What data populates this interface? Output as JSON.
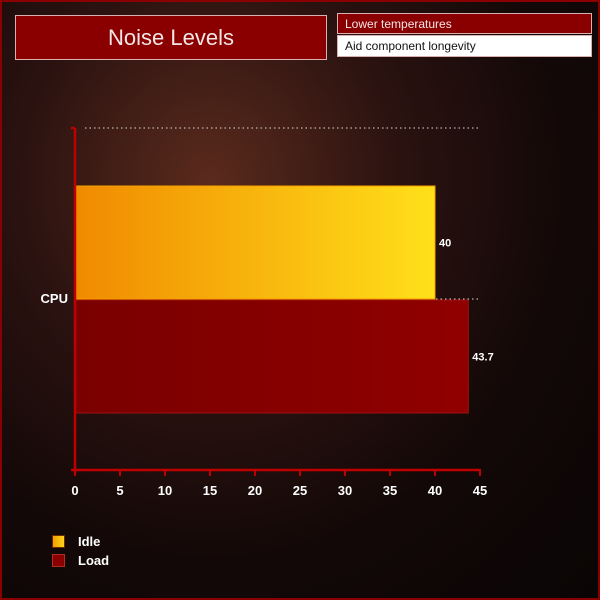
{
  "header": {
    "title": "Noise Levels",
    "tags": [
      "Lower temperatures",
      "Aid component longevity"
    ]
  },
  "chart_data": {
    "type": "bar",
    "orientation": "horizontal",
    "title": "Noise Levels",
    "categories": [
      "CPU"
    ],
    "series": [
      {
        "name": "Idle",
        "values": [
          40
        ],
        "color": "#fdb813"
      },
      {
        "name": "Load",
        "values": [
          43.7
        ],
        "color": "#8a0000"
      }
    ],
    "xlim": [
      0,
      45
    ],
    "xticks": [
      0,
      5,
      10,
      15,
      20,
      25,
      30,
      35,
      40,
      45
    ],
    "data_labels": [
      "40",
      "43.7"
    ],
    "legend": "bottom-left",
    "grid": false
  }
}
